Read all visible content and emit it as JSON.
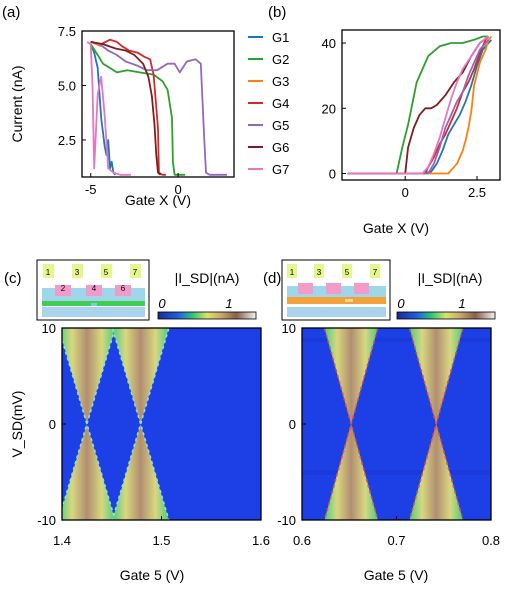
{
  "chart_data": [
    {
      "panel": "(a)",
      "type": "line",
      "xlabel": "Gate X (V)",
      "ylabel": "Current (nA)",
      "xlim": [
        -5.5,
        3.2
      ],
      "ylim": [
        0.8,
        7.5
      ],
      "xticks": [
        "-5",
        "0"
      ],
      "xtick_values": [
        -5,
        0
      ],
      "yticks": [
        "7.5",
        "5.0",
        "2.5"
      ],
      "ytick_values": [
        7.5,
        5.0,
        2.5
      ],
      "legend_position": "right",
      "series": [
        {
          "name": "G1",
          "color": "#1f77b4",
          "x": [
            -5.0,
            -4.8,
            -4.6,
            -4.4,
            -4.2,
            -4.1,
            -4.0,
            -3.9,
            -3.8,
            -3.7,
            -3.6
          ],
          "y": [
            6.9,
            6.5,
            5.8,
            3.5,
            2.2,
            1.8,
            2.5,
            1.2,
            1.5,
            1.0,
            0.9
          ]
        },
        {
          "name": "G2",
          "color": "#2ca02c",
          "x": [
            -5.0,
            -4.6,
            -4.3,
            -3.9,
            -3.5,
            -2.9,
            -2.2,
            -1.4,
            -0.9,
            -0.6,
            -0.35,
            -0.3,
            -0.2,
            0.0,
            0.4
          ],
          "y": [
            6.9,
            6.4,
            6.0,
            5.8,
            5.6,
            5.7,
            5.6,
            5.5,
            5.2,
            4.8,
            3.5,
            1.5,
            0.9,
            0.9,
            0.9
          ]
        },
        {
          "name": "G3",
          "color": "#ff7f0e",
          "x": [
            -5.0,
            -4.7,
            -4.4
          ],
          "y": [
            7.0,
            6.9,
            6.8
          ]
        },
        {
          "name": "G4",
          "color": "#d62728",
          "x": [
            -5.0,
            -4.4,
            -3.9,
            -3.5,
            -3.2,
            -2.8,
            -2.3,
            -1.9,
            -1.6,
            -1.4,
            -1.25,
            -1.15,
            -1.1,
            -0.9,
            -0.7
          ],
          "y": [
            7.0,
            6.9,
            7.1,
            7.0,
            6.8,
            6.6,
            6.5,
            6.3,
            6.2,
            5.5,
            4.0,
            3.0,
            1.0,
            0.9,
            0.9
          ]
        },
        {
          "name": "G5",
          "color": "#9467bd",
          "x": [
            -5.0,
            -4.5,
            -4.0,
            -3.5,
            -3.0,
            -2.3,
            -1.8,
            -1.2,
            -0.6,
            -0.2,
            0.1,
            0.5,
            1.0,
            1.3,
            1.5,
            1.6,
            1.8,
            2.2,
            2.8
          ],
          "y": [
            7.0,
            6.9,
            6.6,
            6.4,
            6.1,
            5.9,
            5.7,
            5.7,
            6.0,
            6.0,
            5.6,
            6.1,
            6.2,
            6.0,
            2.5,
            1.0,
            0.9,
            0.9,
            0.9
          ]
        },
        {
          "name": "G6",
          "color": "#7b1e1e",
          "x": [
            -5.0,
            -4.3,
            -3.6,
            -3.0,
            -2.5,
            -2.0,
            -1.7,
            -1.5,
            -1.35,
            -1.25,
            -1.15,
            -1.0
          ],
          "y": [
            7.0,
            6.9,
            6.7,
            6.6,
            6.4,
            6.0,
            5.4,
            4.5,
            3.2,
            1.8,
            1.0,
            0.9
          ]
        },
        {
          "name": "G7",
          "color": "#e377c2",
          "x": [
            -5.2,
            -5.0,
            -4.9,
            -4.8,
            -4.6,
            -4.4,
            -4.2,
            -4.0,
            -3.7,
            -3.3,
            -3.0,
            -2.7
          ],
          "y": [
            7.0,
            6.9,
            5.0,
            1.2,
            4.6,
            5.4,
            3.6,
            1.2,
            1.0,
            0.9,
            0.9,
            0.9
          ]
        }
      ]
    },
    {
      "panel": "(b)",
      "type": "line",
      "xlabel": "Gate X (V)",
      "ylabel": "",
      "xlim": [
        -2.2,
        3.3
      ],
      "ylim": [
        -2,
        44
      ],
      "xticks": [
        "0",
        "2.5"
      ],
      "xtick_values": [
        0,
        2.5
      ],
      "yticks": [
        "40",
        "20",
        "0"
      ],
      "ytick_values": [
        40,
        20,
        0
      ],
      "series": [
        {
          "name": "G1",
          "color": "#1f77b4",
          "x": [
            -2.0,
            0.6,
            0.9,
            1.1,
            1.3,
            1.5,
            1.7,
            1.9,
            2.1,
            2.3,
            2.5,
            2.7,
            2.9,
            3.0
          ],
          "y": [
            0,
            0,
            0.5,
            3,
            7,
            12,
            15,
            18,
            22,
            27,
            33,
            38,
            40,
            41
          ]
        },
        {
          "name": "G2",
          "color": "#2ca02c",
          "x": [
            -2.0,
            -0.3,
            -0.25,
            -0.1,
            0.1,
            0.4,
            0.8,
            1.2,
            1.6,
            2.0,
            2.4,
            2.7,
            2.9
          ],
          "y": [
            0,
            0,
            2,
            8,
            15,
            28,
            36,
            39,
            40,
            40,
            41,
            42,
            42
          ]
        },
        {
          "name": "G3",
          "color": "#ff7f0e",
          "x": [
            -2.0,
            1.5,
            1.6,
            1.8,
            2.0,
            2.1,
            2.2,
            2.3,
            2.4,
            2.6,
            2.8,
            2.9,
            3.0
          ],
          "y": [
            0,
            0,
            1,
            3,
            7,
            10,
            14,
            19,
            27,
            34,
            38,
            41,
            42
          ]
        },
        {
          "name": "G4",
          "color": "#d62728",
          "x": [
            -2.0,
            0.7,
            0.8,
            1.0,
            1.2,
            1.4,
            1.6,
            1.8,
            2.0,
            2.2,
            2.4,
            2.6,
            2.8,
            2.9
          ],
          "y": [
            0,
            0,
            2,
            5,
            9,
            12,
            16,
            20,
            25,
            28,
            32,
            37,
            41,
            42
          ]
        },
        {
          "name": "G5",
          "color": "#9467bd",
          "x": [
            -2.0,
            0.8,
            1.0,
            1.2,
            1.4,
            1.6,
            1.8,
            2.0,
            2.2,
            2.4,
            2.6,
            2.8,
            2.9
          ],
          "y": [
            0,
            0,
            3,
            8,
            14,
            18,
            22,
            25,
            30,
            34,
            38,
            40,
            41
          ]
        },
        {
          "name": "G6",
          "color": "#7b1e1e",
          "x": [
            -2.0,
            0.0,
            0.1,
            0.3,
            0.5,
            0.7,
            0.9,
            1.1,
            1.4,
            1.7,
            2.0,
            2.3,
            2.6,
            2.9
          ],
          "y": [
            0,
            0,
            8,
            14,
            18,
            20,
            20,
            21,
            24,
            28,
            31,
            36,
            40,
            42
          ]
        },
        {
          "name": "G7",
          "color": "#e377c2",
          "x": [
            -2.0,
            0.6,
            0.8,
            1.0,
            1.2,
            1.4,
            1.6,
            1.8,
            2.0,
            2.3,
            2.6,
            2.9
          ],
          "y": [
            0,
            0,
            2,
            6,
            11,
            17,
            23,
            28,
            32,
            36,
            40,
            42
          ]
        }
      ]
    },
    {
      "panel": "(c)",
      "type": "heatmap",
      "xlabel": "Gate 5 (V)",
      "ylabel": "V_SD(mV)",
      "xlim": [
        1.4,
        1.6
      ],
      "ylim": [
        -10,
        10
      ],
      "xticks": [
        "1.4",
        "1.5",
        "1.6"
      ],
      "xtick_values": [
        1.4,
        1.5,
        1.6
      ],
      "yticks": [
        "10",
        "0",
        "-10"
      ],
      "ytick_values": [
        10,
        0,
        -10
      ],
      "colorbar_label": "|I_SD|(nA)",
      "colorbar_ticks": [
        "0",
        "1"
      ],
      "diamond_crossings": [
        {
          "x": 1.425,
          "y": 0
        },
        {
          "x": 1.479,
          "y": 0
        }
      ],
      "inset_gate_labels": [
        "1",
        "2",
        "3",
        "4",
        "5",
        "6",
        "7"
      ]
    },
    {
      "panel": "(d)",
      "type": "heatmap",
      "xlabel": "Gate 5 (V)",
      "ylabel": "",
      "xlim": [
        0.6,
        0.8
      ],
      "ylim": [
        -10,
        10
      ],
      "xticks": [
        "0.6",
        "0.7",
        "0.8"
      ],
      "xtick_values": [
        0.6,
        0.7,
        0.8
      ],
      "yticks": [
        "10",
        "0",
        "-10"
      ],
      "ytick_values": [
        10,
        0,
        -10
      ],
      "colorbar_label": "|I_SD|(nA)",
      "colorbar_ticks": [
        "0",
        "1"
      ],
      "diamond_crossings": [
        {
          "x": 0.652,
          "y": 0
        },
        {
          "x": 0.742,
          "y": 0
        }
      ],
      "inset_gate_labels": [
        "1",
        "3",
        "5",
        "7"
      ]
    }
  ]
}
